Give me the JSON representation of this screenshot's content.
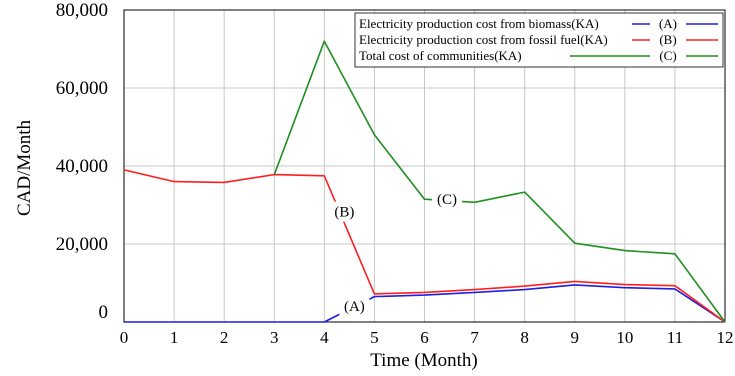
{
  "chart_data": {
    "type": "line",
    "title": "",
    "xlabel": "Time (Month)",
    "ylabel": "CAD/Month",
    "xlim": [
      0,
      12
    ],
    "ylim": [
      0,
      80000
    ],
    "x_ticks": [
      "0",
      "1",
      "2",
      "3",
      "4",
      "5",
      "6",
      "7",
      "8",
      "9",
      "10",
      "11",
      "12"
    ],
    "y_ticks": [
      {
        "value": 0,
        "label": "0"
      },
      {
        "value": 20000,
        "label": "20,000"
      },
      {
        "value": 40000,
        "label": "40,000"
      },
      {
        "value": 60000,
        "label": "60,000"
      },
      {
        "value": 80000,
        "label": "80,000"
      }
    ],
    "grid": true,
    "legend_position": "top-right",
    "series": [
      {
        "name": "Electricity production cost from biomass(KA)",
        "marker": "(A)",
        "color": "#1f1fe0",
        "x": [
          0,
          1,
          2,
          3,
          4,
          5,
          6,
          7,
          8,
          9,
          10,
          11,
          12
        ],
        "values": [
          0,
          0,
          0,
          0,
          0,
          6500,
          6900,
          7600,
          8300,
          9500,
          8800,
          8500,
          0
        ]
      },
      {
        "name": "Electricity production cost from fossil fuel(KA)",
        "marker": "(B)",
        "color": "#ff1f1f",
        "x": [
          0,
          1,
          2,
          3,
          4,
          5,
          6,
          7,
          8,
          9,
          10,
          11,
          12
        ],
        "values": [
          39000,
          36000,
          35800,
          37800,
          37500,
          7200,
          7600,
          8300,
          9200,
          10400,
          9600,
          9300,
          0
        ]
      },
      {
        "name": "Total cost of communities(KA)",
        "marker": "(C)",
        "color": "#1f8f1f",
        "x": [
          3,
          4,
          5,
          6,
          7,
          8,
          9,
          10,
          11,
          12
        ],
        "values": [
          37800,
          72000,
          48000,
          31500,
          30700,
          33300,
          20200,
          18300,
          17500,
          0
        ]
      }
    ],
    "annotations": [
      {
        "text": "(A)",
        "x": 4.6,
        "y": 4100
      },
      {
        "text": "(B)",
        "x": 4.4,
        "y": 28300
      },
      {
        "text": "(C)",
        "x": 6.45,
        "y": 31500
      }
    ]
  }
}
